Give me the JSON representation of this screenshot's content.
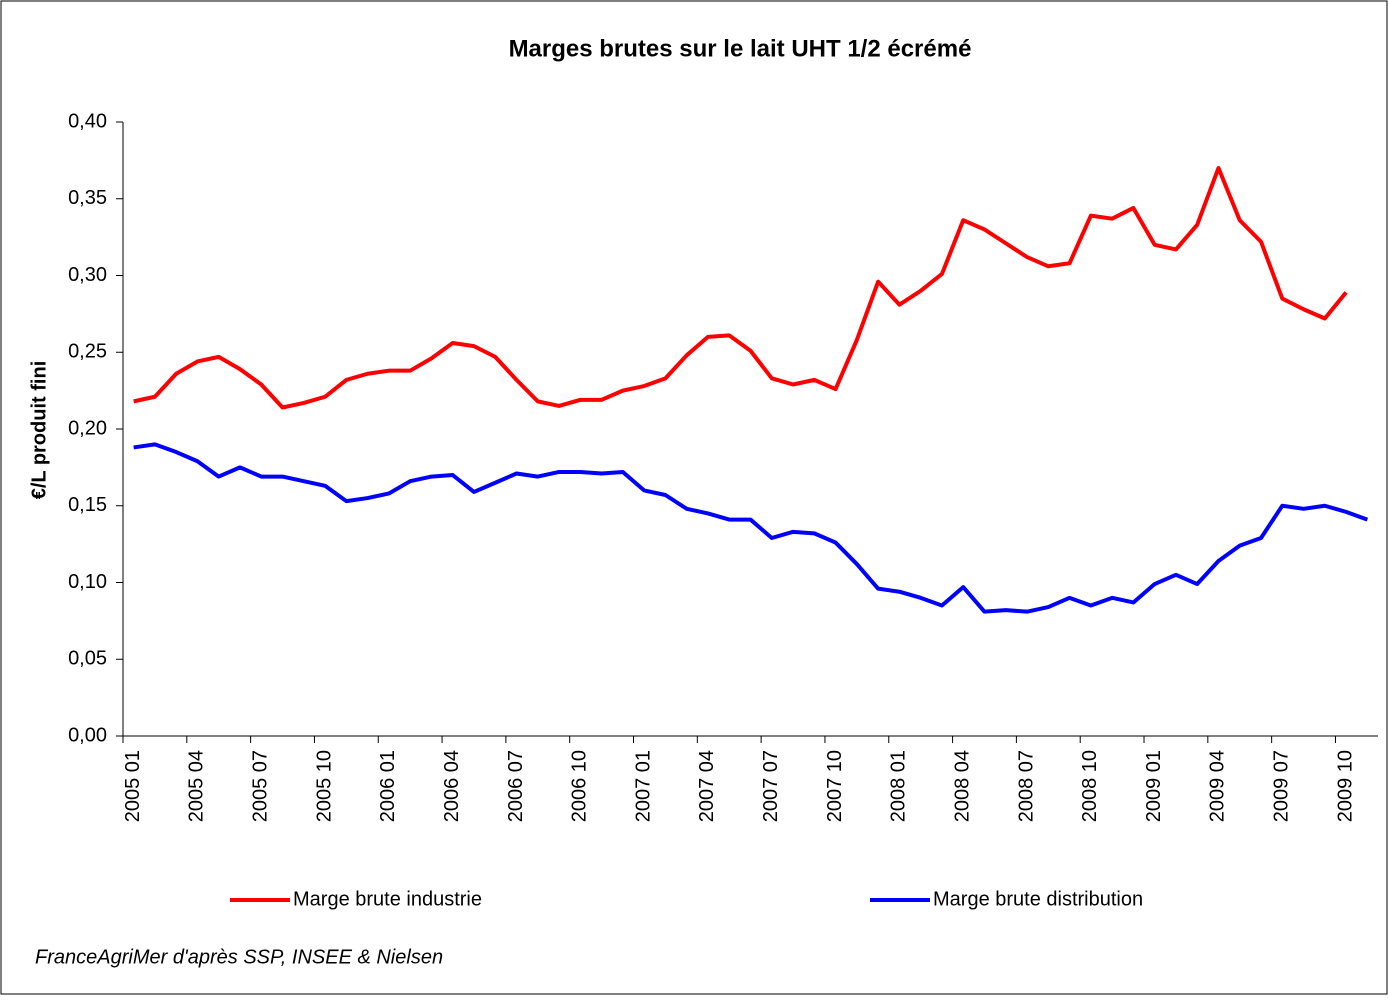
{
  "chart_data": {
    "type": "line",
    "title": "Marges brutes sur le lait UHT 1/2 écrémé",
    "y_label": "€/L produit fini",
    "source": "FranceAgriMer d'après SSP, INSEE & Nielsen",
    "categories": [
      "2005 01",
      null,
      null,
      "2005 04",
      null,
      null,
      "2005 07",
      null,
      null,
      "2005 10",
      null,
      null,
      "2006 01",
      null,
      null,
      "2006 04",
      null,
      null,
      "2006 07",
      null,
      null,
      "2006 10",
      null,
      null,
      "2007 01",
      null,
      null,
      "2007 04",
      null,
      null,
      "2007 07",
      null,
      null,
      "2007 10",
      null,
      null,
      "2008 01",
      null,
      null,
      "2008 04",
      null,
      null,
      "2008 07",
      null,
      null,
      "2008 10",
      null,
      null,
      "2009 01",
      null,
      null,
      "2009 04",
      null,
      null,
      "2009 07",
      null,
      null,
      "2009 10",
      null
    ],
    "series": [
      {
        "name": "Marge brute industrie",
        "color": "#ff0000",
        "values": [
          0.218,
          0.221,
          0.236,
          0.244,
          0.247,
          0.239,
          0.229,
          0.214,
          0.217,
          0.221,
          0.232,
          0.236,
          0.238,
          0.238,
          0.246,
          0.256,
          0.254,
          0.247,
          0.232,
          0.218,
          0.215,
          0.219,
          0.219,
          0.225,
          0.228,
          0.233,
          0.248,
          0.26,
          0.261,
          0.251,
          0.233,
          0.229,
          0.232,
          0.226,
          0.258,
          0.296,
          0.281,
          0.29,
          0.301,
          0.336,
          0.33,
          0.321,
          0.312,
          0.306,
          0.308,
          0.339,
          0.337,
          0.344,
          0.32,
          0.317,
          0.333,
          0.37,
          0.336,
          0.322,
          0.285,
          0.278,
          0.272,
          0.289,
          null
        ]
      },
      {
        "name": "Marge brute distribution",
        "color": "#0000ff",
        "values": [
          0.188,
          0.19,
          0.185,
          0.179,
          0.169,
          0.175,
          0.169,
          0.169,
          0.166,
          0.163,
          0.153,
          0.155,
          0.158,
          0.166,
          0.169,
          0.17,
          0.159,
          0.165,
          0.171,
          0.169,
          0.172,
          0.172,
          0.171,
          0.172,
          0.16,
          0.157,
          0.148,
          0.145,
          0.141,
          0.141,
          0.129,
          0.133,
          0.132,
          0.126,
          0.112,
          0.096,
          0.094,
          0.09,
          0.085,
          0.097,
          0.081,
          0.082,
          0.081,
          0.084,
          0.09,
          0.085,
          0.09,
          0.087,
          0.099,
          0.105,
          0.099,
          0.114,
          0.124,
          0.129,
          0.15,
          0.148,
          0.15,
          0.146,
          0.141
        ]
      }
    ],
    "ylim": [
      0,
      0.4
    ],
    "yticks": [
      {
        "value": 0,
        "label": "0,00"
      },
      {
        "value": 0.05,
        "label": "0,05"
      },
      {
        "value": 0.1,
        "label": "0,10"
      },
      {
        "value": 0.15,
        "label": "0,15"
      },
      {
        "value": 0.2,
        "label": "0,20"
      },
      {
        "value": 0.25,
        "label": "0,25"
      },
      {
        "value": 0.3,
        "label": "0,30"
      },
      {
        "value": 0.35,
        "label": "0,35"
      },
      {
        "value": 0.4,
        "label": "0,40"
      }
    ],
    "grid": false,
    "legend": "bottom"
  }
}
